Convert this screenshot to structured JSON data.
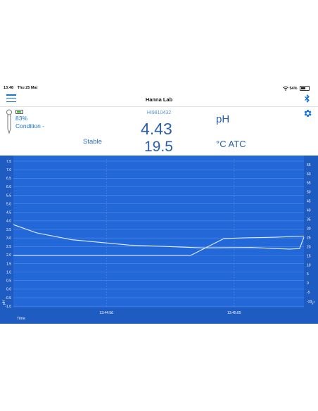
{
  "status_bar": {
    "time": "13:48",
    "date": "Thu 25 Mar",
    "battery": "54%"
  },
  "header": {
    "title": "Hanna Lab"
  },
  "probe": {
    "battery": "83%",
    "condition": "Condition -"
  },
  "reading": {
    "device_id": "HI9810432",
    "stability": "Stable",
    "ph_value": "4.43",
    "ph_unit": "pH",
    "temp_value": "19.5",
    "temp_unit": "°C ATC"
  },
  "colors": {
    "accent": "#1a73d9",
    "chart_bg": "#2368d8",
    "chart_axis_bg": "#1f5cc2"
  },
  "chart_data": {
    "type": "line",
    "xlabel": "Time",
    "ylabel_left": "pH",
    "ylabel_right": "°C",
    "x_ticks": [
      "13:44:56",
      "13:45:05"
    ],
    "y_left_ticks": [
      "7.5",
      "7.0",
      "6.5",
      "6.0",
      "5.5",
      "5.0",
      "4.5",
      "4.0",
      "3.5",
      "3.0",
      "2.5",
      "2.0",
      "1.5",
      "1.0",
      "0.5",
      "0.0",
      "-0.5",
      "-1.0"
    ],
    "y_right_ticks": [
      "65",
      "60",
      "55",
      "50",
      "45",
      "40",
      "35",
      "30",
      "25",
      "20",
      "15",
      "10",
      "5",
      "0",
      "-5",
      "-10"
    ],
    "ylim_left": [
      -1.0,
      7.5
    ],
    "ylim_right": [
      -10,
      65
    ],
    "grid": true,
    "series": [
      {
        "axis": "left",
        "values": [
          [
            0,
            3.78
          ],
          [
            0.08,
            3.3
          ],
          [
            0.2,
            2.9
          ],
          [
            0.4,
            2.58
          ],
          [
            0.65,
            2.42
          ],
          [
            0.82,
            2.44
          ],
          [
            0.95,
            2.35
          ],
          [
            0.985,
            2.38
          ],
          [
            1.0,
            3.05
          ]
        ]
      },
      {
        "axis": "right",
        "values": [
          [
            0,
            15.2
          ],
          [
            0.61,
            15.2
          ],
          [
            0.725,
            24.5
          ],
          [
            0.8,
            24.9
          ],
          [
            0.9,
            25.2
          ],
          [
            1.0,
            25.8
          ]
        ]
      }
    ]
  }
}
